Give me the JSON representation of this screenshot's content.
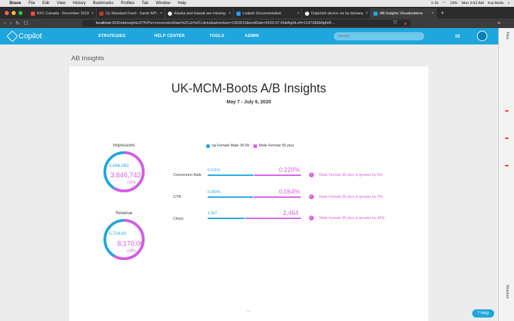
{
  "menubar": {
    "app": "Brave",
    "items": [
      "File",
      "Edit",
      "View",
      "History",
      "Bookmarks",
      "Profiles",
      "Tab",
      "Window",
      "Help"
    ],
    "time_small": "1:16",
    "battery": "19%",
    "clock": "Mon 9:52 AM",
    "user": "Kat Mello"
  },
  "tabs": [
    {
      "title": "KFC Canada - December 2019",
      "color": "#e84c3d"
    },
    {
      "title": "(1) Standard Feed - Xandr API -",
      "color": "#c0392b"
    },
    {
      "title": "Alaska and Hawaii are missing",
      "color": "#ffffff"
    },
    {
      "title": "Lodash Documentation",
      "color": "#3492ff"
    },
    {
      "title": "Dulpolish device viz by duhaeq",
      "color": "#ffffff"
    },
    {
      "title": "AB Insights Visualizations",
      "color": "#1fa6dc"
    }
  ],
  "address": {
    "host": "localhost",
    "rest": ":3000/abinsights/2/?KPIs=conversionRate%2Cctr%2Cclicks&advertiser=1953619&endDate=2020-07-06&flightLeft=1147288&flightR..."
  },
  "appnav": {
    "brand": "Copilot",
    "items": [
      "STRATEGIES",
      "HELP CENTER",
      "TOOLS",
      "ADMIN"
    ],
    "search_placeholder": "Search"
  },
  "sidebar_labels": [
    "Files",
    "Structure"
  ],
  "page": {
    "title": "AB Insights",
    "report_title": "UK-MCM-Boots A/B Insights",
    "date_range": "May 7 - July 6, 2020"
  },
  "colors": {
    "a": "#1fa6dc",
    "b": "#d45ee3"
  },
  "donuts": [
    {
      "label": "Impressions",
      "a_value": "2,696,093",
      "b_value": "3,846,742",
      "pct": "+32%",
      "b_share": 0.588
    },
    {
      "label": "Revenue",
      "a_value": "5,724.82",
      "b_value": "8,170.06",
      "pct": "+35%",
      "b_share": 0.588
    }
  ],
  "legend": {
    "a": "ng Female Male 20-55",
    "b": "Male Female 55 plus"
  },
  "kpis": [
    {
      "label": "Conversion Rate",
      "a_value": "0.211%",
      "b_value": "0.220%",
      "a_share": 0.49,
      "note": "Male Female 55 plus is greater by 5%"
    },
    {
      "label": "CTR",
      "a_value": "0.060%",
      "b_value": "0.064%",
      "a_share": 0.485,
      "note": "Male Female 55 plus is greater by 7%"
    },
    {
      "label": "Clicks",
      "a_value": "1,607",
      "b_value": "2,464",
      "a_share": 0.395,
      "note": "Male Female 55 plus is greater by 42%"
    }
  ],
  "help_label": "Help"
}
